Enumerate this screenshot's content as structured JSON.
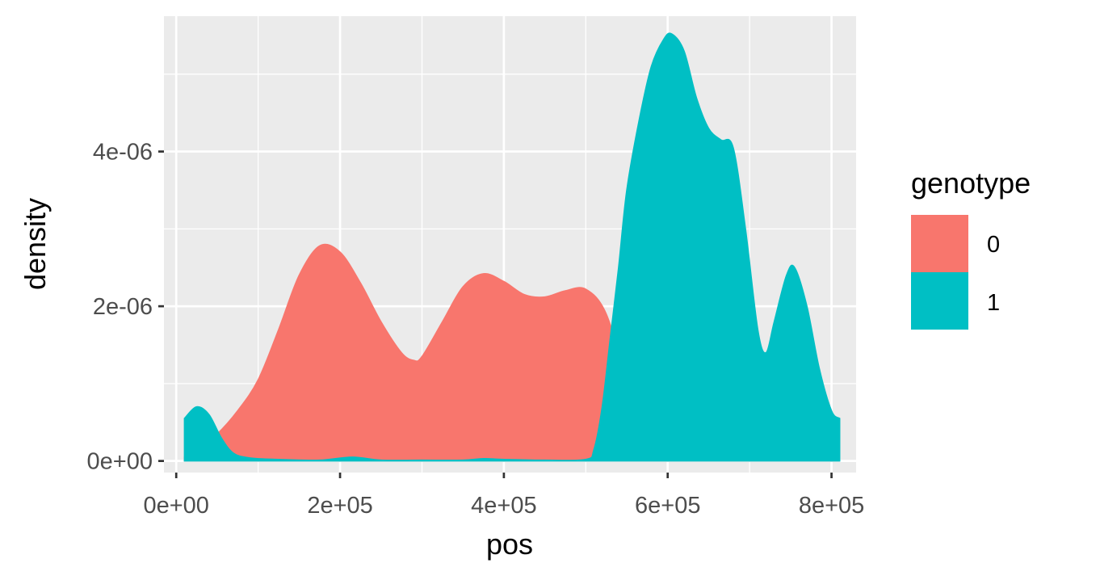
{
  "chart_data": {
    "type": "area",
    "title": "",
    "xlabel": "pos",
    "ylabel": "density",
    "xlim": [
      -15000,
      830000
    ],
    "ylim": [
      -1.5e-07,
      5.75e-06
    ],
    "x_ticks": [
      0,
      200000,
      400000,
      600000,
      800000
    ],
    "x_tick_labels": [
      "0e+00",
      "2e+05",
      "4e+05",
      "6e+05",
      "8e+05"
    ],
    "y_ticks": [
      0,
      2e-06,
      4e-06
    ],
    "y_tick_labels": [
      "0e+00",
      "2e-06",
      "4e-06"
    ],
    "grid": true,
    "legend": {
      "title": "genotype",
      "position": "right"
    },
    "series": [
      {
        "name": "0",
        "color": "#F8766D",
        "x": [
          10000,
          25000,
          50000,
          75000,
          100000,
          125000,
          150000,
          175000,
          200000,
          225000,
          250000,
          275000,
          290000,
          300000,
          325000,
          350000,
          375000,
          400000,
          425000,
          450000,
          475000,
          500000,
          525000,
          550000,
          560000,
          575000,
          600000,
          625000,
          650000,
          700000,
          750000,
          800000,
          810000
        ],
        "y": [
          5e-08,
          1.5e-07,
          3.5e-07,
          6.5e-07,
          1.05e-06,
          1.7e-06,
          2.4e-06,
          2.78e-06,
          2.7e-06,
          2.3e-06,
          1.8e-06,
          1.4e-06,
          1.3e-06,
          1.35e-06,
          1.8e-06,
          2.25e-06,
          2.42e-06,
          2.32e-06,
          2.15e-06,
          2.12e-06,
          2.2e-06,
          2.22e-06,
          1.9e-06,
          1e-06,
          5.5e-07,
          2e-07,
          5e-08,
          1e-08,
          0.0,
          0.0,
          0.0,
          0.0,
          0.0
        ]
      },
      {
        "name": "1",
        "color": "#00BFC4",
        "x": [
          10000,
          25000,
          40000,
          55000,
          70000,
          90000,
          125000,
          175000,
          215000,
          250000,
          300000,
          350000,
          375000,
          400000,
          450000,
          500000,
          510000,
          520000,
          530000,
          540000,
          550000,
          565000,
          580000,
          595000,
          605000,
          620000,
          635000,
          650000,
          665000,
          680000,
          695000,
          710000,
          720000,
          730000,
          745000,
          755000,
          770000,
          785000,
          800000,
          810000
        ],
        "y": [
          5.5e-07,
          7e-07,
          6e-07,
          3e-07,
          1e-07,
          4e-08,
          2e-08,
          1e-08,
          5e-08,
          1e-08,
          1e-08,
          1e-08,
          3e-08,
          2e-08,
          1e-08,
          2e-08,
          1.5e-07,
          7e-07,
          1.6e-06,
          2.5e-06,
          3.5e-06,
          4.4e-06,
          5.1e-06,
          5.45e-06,
          5.52e-06,
          5.3e-06,
          4.7e-06,
          4.3e-06,
          4.15e-06,
          4.05e-06,
          3e-06,
          1.7e-06,
          1.4e-06,
          1.8e-06,
          2.4e-06,
          2.5e-06,
          2e-06,
          1.2e-06,
          6.5e-07,
          5.5e-07
        ]
      }
    ]
  }
}
